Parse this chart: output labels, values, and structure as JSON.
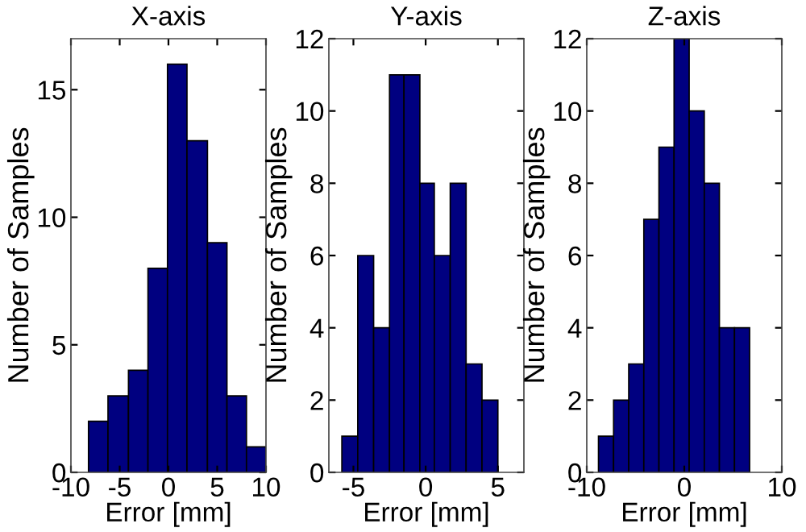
{
  "chart_data": [
    {
      "type": "histogram",
      "title": "X-axis",
      "xlabel": "Error [mm]",
      "ylabel": "Number of Samples",
      "color": "#000080",
      "bins": [
        -8.2,
        -6.2,
        -4.1,
        -2.1,
        -0.1,
        1.9,
        4.0,
        6.0,
        8.0,
        10.0
      ],
      "values": [
        2,
        3,
        4,
        8,
        16,
        13,
        9,
        3,
        1
      ],
      "xlim": [
        -10,
        10
      ],
      "xticks": [
        -10,
        -5,
        0,
        5,
        10
      ],
      "ylim": [
        0,
        17
      ],
      "yticks": [
        0,
        5,
        10,
        15
      ]
    },
    {
      "type": "histogram",
      "title": "Y-axis",
      "xlabel": "Error [mm]",
      "ylabel": "Number of Samples",
      "color": "#000080",
      "bins": [
        -5.8,
        -4.7,
        -3.6,
        -2.5,
        -1.5,
        -0.4,
        0.6,
        1.7,
        2.8,
        3.9,
        5.0
      ],
      "values": [
        1,
        6,
        4,
        11,
        11,
        8,
        6,
        8,
        3,
        2
      ],
      "xlim": [
        -6.7,
        6.8
      ],
      "xticks": [
        -5,
        0,
        5
      ],
      "ylim": [
        0,
        12
      ],
      "yticks": [
        0,
        2,
        4,
        6,
        8,
        10,
        12
      ]
    },
    {
      "type": "histogram",
      "title": "Z-axis",
      "xlabel": "Error [mm]",
      "ylabel": "Number of Samples",
      "color": "#000080",
      "bins": [
        -8.8,
        -7.25,
        -5.7,
        -4.15,
        -2.6,
        -1.05,
        0.5,
        2.05,
        3.6,
        5.15,
        6.7
      ],
      "values": [
        1,
        2,
        3,
        7,
        9,
        12,
        10,
        8,
        4,
        4
      ],
      "xlim": [
        -10,
        10
      ],
      "xticks": [
        -10,
        0,
        10
      ],
      "ylim": [
        0,
        12
      ],
      "yticks": [
        0,
        2,
        4,
        6,
        8,
        10,
        12
      ]
    }
  ]
}
